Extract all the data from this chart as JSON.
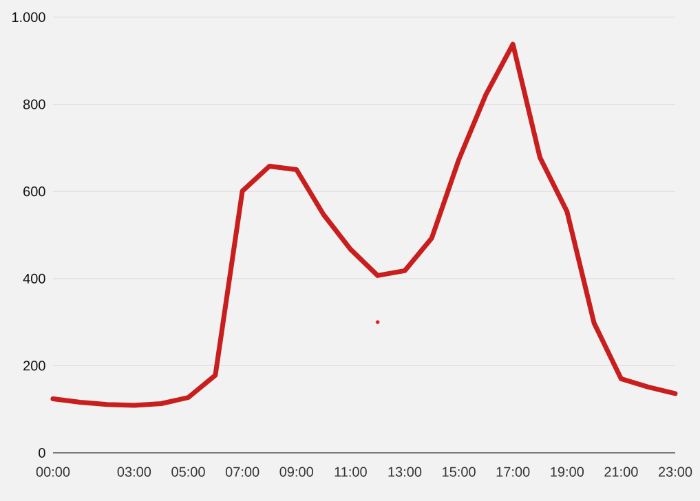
{
  "chart_data": {
    "type": "line",
    "x": [
      0,
      1,
      2,
      3,
      4,
      5,
      6,
      7,
      8,
      9,
      10,
      11,
      12,
      13,
      14,
      15,
      16,
      17,
      18,
      19,
      20,
      21,
      22,
      23
    ],
    "xlim": [
      0,
      23
    ],
    "xticks": [
      {
        "value": 0,
        "label": "00:00"
      },
      {
        "value": 3,
        "label": "03:00"
      },
      {
        "value": 5,
        "label": "05:00"
      },
      {
        "value": 7,
        "label": "07:00"
      },
      {
        "value": 9,
        "label": "09:00"
      },
      {
        "value": 11,
        "label": "11:00"
      },
      {
        "value": 13,
        "label": "13:00"
      },
      {
        "value": 15,
        "label": "15:00"
      },
      {
        "value": 17,
        "label": "17:00"
      },
      {
        "value": 19,
        "label": "19:00"
      },
      {
        "value": 21,
        "label": "21:00"
      },
      {
        "value": 23,
        "label": "23:00"
      }
    ],
    "ylim": [
      0,
      1000
    ],
    "yticks": [
      0,
      200,
      400,
      600,
      800,
      {
        "value": 1000,
        "label": "1.000"
      }
    ],
    "grid": "y",
    "marker": "none",
    "line_style": "solid",
    "series": [
      {
        "color": "#c81e1e",
        "values": [
          124,
          116,
          111,
          109,
          113,
          127,
          178,
          601,
          658,
          650,
          547,
          467,
          407,
          418,
          493,
          673,
          822,
          938,
          678,
          554,
          298,
          170,
          151,
          136
        ]
      },
      {
        "type": "scatter",
        "x": [
          12
        ],
        "values": [
          300
        ],
        "color": "#e02026",
        "marker": "circle"
      }
    ]
  }
}
